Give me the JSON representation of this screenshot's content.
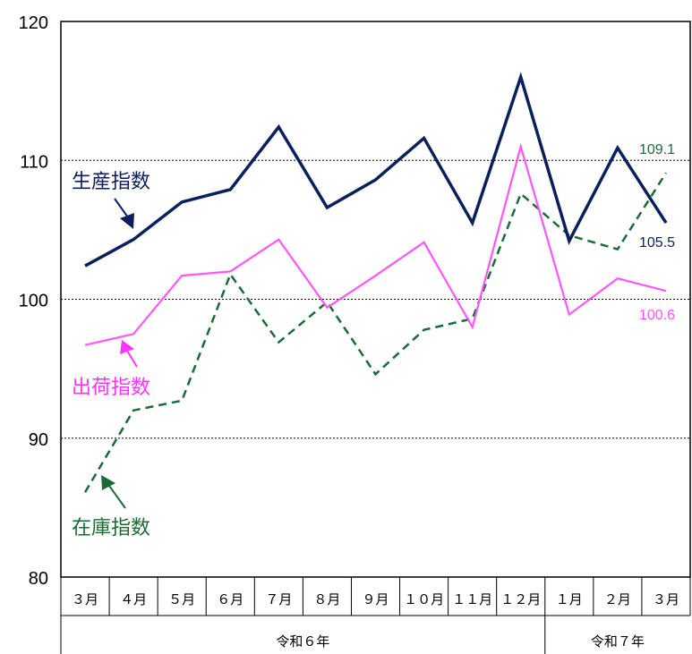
{
  "chart_data": {
    "type": "line",
    "categories": [
      "３月",
      "４月",
      "５月",
      "６月",
      "７月",
      "８月",
      "９月",
      "１０月",
      "１１月",
      "１２月",
      "１月",
      "２月",
      "３月"
    ],
    "year_groups": [
      {
        "label": "令和６年",
        "start": 0,
        "end": 9
      },
      {
        "label": "令和７年",
        "start": 10,
        "end": 12
      }
    ],
    "ylim": [
      80,
      120
    ],
    "yticks": [
      80,
      90,
      100,
      110,
      120
    ],
    "grid_lines": [
      90,
      100,
      110
    ],
    "series": [
      {
        "name": "生産指数",
        "color": "#0b1f5c",
        "style": "solid",
        "values": [
          102.4,
          104.3,
          107.0,
          107.9,
          112.4,
          106.6,
          108.6,
          111.6,
          105.5,
          116.0,
          104.2,
          110.9,
          105.5
        ],
        "end_label": "105.5"
      },
      {
        "name": "出荷指数",
        "color": "#ff55ff",
        "style": "solid",
        "values": [
          96.7,
          97.5,
          101.7,
          102.0,
          104.3,
          99.4,
          101.7,
          104.1,
          98.0,
          111.0,
          98.9,
          101.5,
          100.6
        ],
        "end_label": "100.6"
      },
      {
        "name": "在庫指数",
        "color": "#1a6b35",
        "style": "dashed",
        "values": [
          86.1,
          92.0,
          92.7,
          101.8,
          96.9,
          99.8,
          94.6,
          97.8,
          98.6,
          107.6,
          104.6,
          103.6,
          109.1
        ],
        "end_label": "109.1"
      }
    ]
  }
}
